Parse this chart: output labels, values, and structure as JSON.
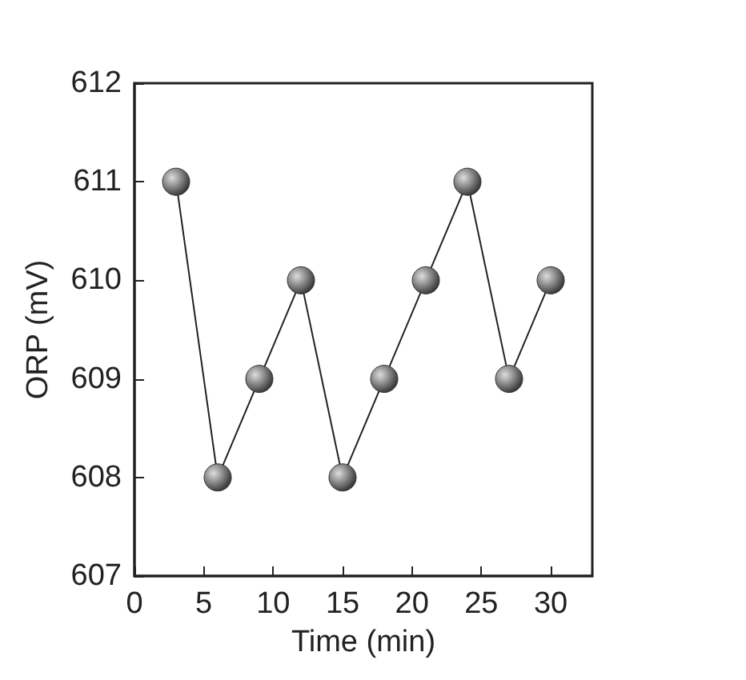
{
  "chart_data": {
    "type": "line",
    "xlabel": "Time (min)",
    "ylabel": "ORP (mV)",
    "x": [
      3,
      6,
      9,
      12,
      15,
      18,
      21,
      24,
      27,
      30
    ],
    "series": [
      {
        "color": "#333333",
        "values": [
          611,
          608,
          609,
          610,
          608,
          609,
          610,
          611,
          609,
          610
        ]
      }
    ],
    "xlim": [
      0,
      33
    ],
    "xticks": [
      0,
      5,
      10,
      15,
      20,
      25,
      30
    ],
    "ylim": [
      607,
      612
    ],
    "yticks": [
      607,
      608,
      609,
      610,
      611,
      612
    ],
    "grid": false,
    "marker": "circle",
    "line_style": "solid"
  }
}
